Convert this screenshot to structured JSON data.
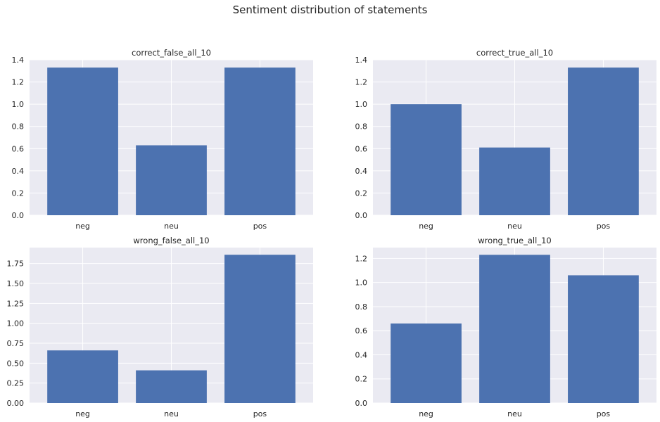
{
  "figure": {
    "suptitle": "Sentiment distribution of statements"
  },
  "chart_data": [
    {
      "type": "bar",
      "title": "correct_false_all_10",
      "categories": [
        "neg",
        "neu",
        "pos"
      ],
      "values": [
        1.33,
        0.63,
        1.33
      ],
      "ylim": [
        0,
        1.4
      ],
      "yticks": [
        0.0,
        0.2,
        0.4,
        0.6,
        0.8,
        1.0,
        1.2,
        1.4
      ],
      "ytick_labels": [
        "0.0",
        "0.2",
        "0.4",
        "0.6",
        "0.8",
        "1.0",
        "1.2",
        "1.4"
      ],
      "xlabel": "",
      "ylabel": "",
      "grid": true,
      "bar_color": "#4c72b0"
    },
    {
      "type": "bar",
      "title": "correct_true_all_10",
      "categories": [
        "neg",
        "neu",
        "pos"
      ],
      "values": [
        1.0,
        0.61,
        1.33
      ],
      "ylim": [
        0,
        1.4
      ],
      "yticks": [
        0.0,
        0.2,
        0.4,
        0.6,
        0.8,
        1.0,
        1.2,
        1.4
      ],
      "ytick_labels": [
        "0.0",
        "0.2",
        "0.4",
        "0.6",
        "0.8",
        "1.0",
        "1.2",
        "1.4"
      ],
      "xlabel": "",
      "ylabel": "",
      "grid": true,
      "bar_color": "#4c72b0"
    },
    {
      "type": "bar",
      "title": "wrong_false_all_10",
      "categories": [
        "neg",
        "neu",
        "pos"
      ],
      "values": [
        0.66,
        0.41,
        1.86
      ],
      "ylim": [
        0,
        1.95
      ],
      "yticks": [
        0.0,
        0.25,
        0.5,
        0.75,
        1.0,
        1.25,
        1.5,
        1.75
      ],
      "ytick_labels": [
        "0.00",
        "0.25",
        "0.50",
        "0.75",
        "1.00",
        "1.25",
        "1.50",
        "1.75"
      ],
      "xlabel": "",
      "ylabel": "",
      "grid": true,
      "bar_color": "#4c72b0"
    },
    {
      "type": "bar",
      "title": "wrong_true_all_10",
      "categories": [
        "neg",
        "neu",
        "pos"
      ],
      "values": [
        0.66,
        1.23,
        1.06
      ],
      "ylim": [
        0,
        1.29
      ],
      "yticks": [
        0.0,
        0.2,
        0.4,
        0.6,
        0.8,
        1.0,
        1.2
      ],
      "ytick_labels": [
        "0.0",
        "0.2",
        "0.4",
        "0.6",
        "0.8",
        "1.0",
        "1.2"
      ],
      "xlabel": "",
      "ylabel": "",
      "grid": true,
      "bar_color": "#4c72b0"
    }
  ],
  "style": {
    "axes_bg": "#eaeaf2",
    "grid_color": "#ffffff",
    "text_color": "#262626"
  }
}
